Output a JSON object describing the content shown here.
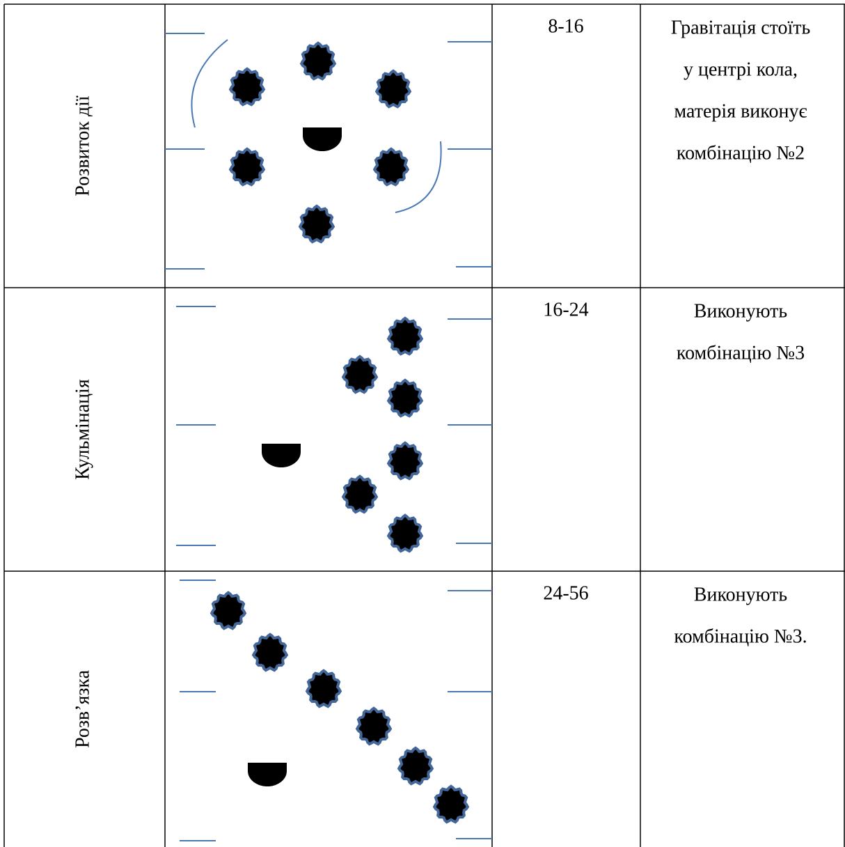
{
  "table": {
    "rows": [
      {
        "stage": "Розвиток дії",
        "time": "8-16",
        "description": [
          "Гравітація стоїть",
          "у центрі кола,",
          "матерія виконує",
          "комбінацію №2"
        ]
      },
      {
        "stage": "Кульмінація",
        "time": "16-24",
        "description": [
          "Виконують",
          "комбінацію №3"
        ]
      },
      {
        "stage": "Розв’язка",
        "time": "24-56",
        "description": [
          "Виконують",
          "комбінацію №3."
        ]
      }
    ]
  }
}
